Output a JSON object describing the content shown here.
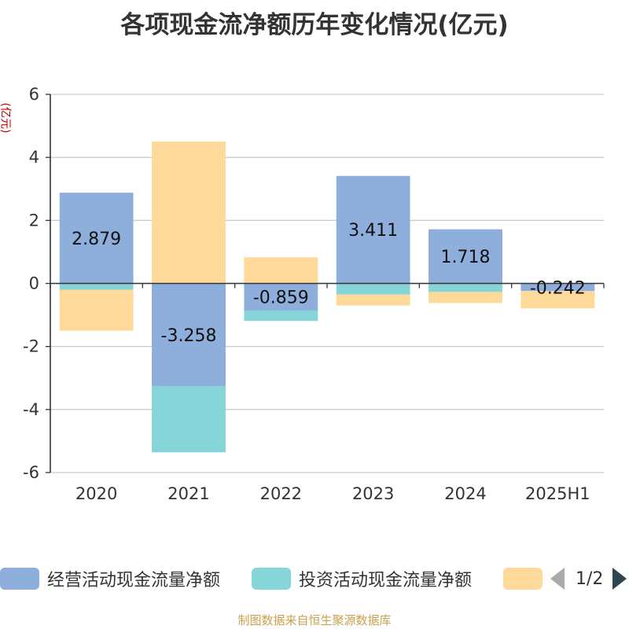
{
  "title": "各项现金流净额历年变化情况(亿元)",
  "unit_label": "(亿元)",
  "source": "制图数据来自恒生聚源数据库",
  "legend": {
    "pager_text": "1/2"
  },
  "chart_data": {
    "type": "bar",
    "stacked": true,
    "categories": [
      "2020",
      "2021",
      "2022",
      "2023",
      "2024",
      "2025H1"
    ],
    "ylim": [
      -6,
      6
    ],
    "yticks": [
      -6,
      -4,
      -2,
      0,
      2,
      4,
      6
    ],
    "grid": true,
    "legend_position": "bottom",
    "series": [
      {
        "name": "经营活动现金流量净额",
        "color": "#8eaedb",
        "values": [
          2.879,
          -3.258,
          -0.859,
          3.411,
          1.718,
          -0.242
        ],
        "labels": [
          "2.879",
          "-3.258",
          "-0.859",
          "3.411",
          "1.718",
          "-0.242"
        ]
      },
      {
        "name": "投资活动现金流量净额",
        "color": "#86d5d8",
        "values": [
          -0.2,
          -2.1,
          -0.33,
          -0.35,
          -0.27,
          0.0
        ]
      },
      {
        "name": "",
        "color": "#ffd99a",
        "values": [
          -1.3,
          4.5,
          0.83,
          -0.35,
          -0.35,
          -0.55
        ]
      }
    ]
  }
}
